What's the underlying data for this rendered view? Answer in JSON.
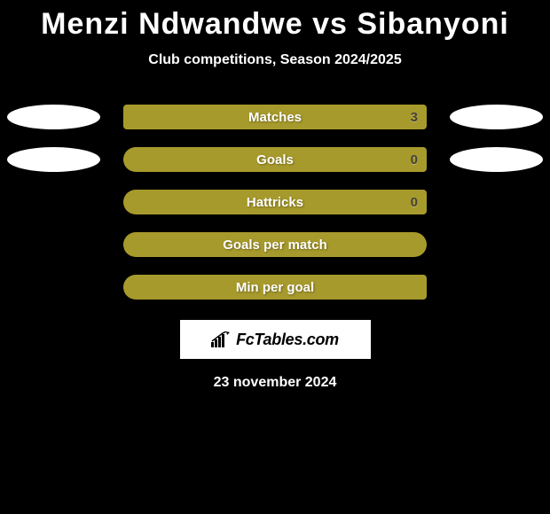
{
  "page": {
    "title": "Menzi Ndwandwe vs Sibanyoni",
    "subtitle": "Club competitions, Season 2024/2025",
    "date": "23 november 2024",
    "colors": {
      "background": "#000000",
      "bar": "#a79a2c",
      "ellipse": "#ffffff",
      "text": "#ffffff",
      "value": "#454036"
    }
  },
  "stats": [
    {
      "label": "Matches",
      "value": "3",
      "left_ellipse": true,
      "right_ellipse": true,
      "shape": "square"
    },
    {
      "label": "Goals",
      "value": "0",
      "left_ellipse": true,
      "right_ellipse": true,
      "shape": "rounded-left"
    },
    {
      "label": "Hattricks",
      "value": "0",
      "left_ellipse": false,
      "right_ellipse": false,
      "shape": "rounded-left"
    },
    {
      "label": "Goals per match",
      "value": "",
      "left_ellipse": false,
      "right_ellipse": false,
      "shape": "rounded-both"
    },
    {
      "label": "Min per goal",
      "value": "",
      "left_ellipse": false,
      "right_ellipse": false,
      "shape": "rounded-both-right"
    }
  ],
  "logo": {
    "text": "FcTables.com"
  }
}
